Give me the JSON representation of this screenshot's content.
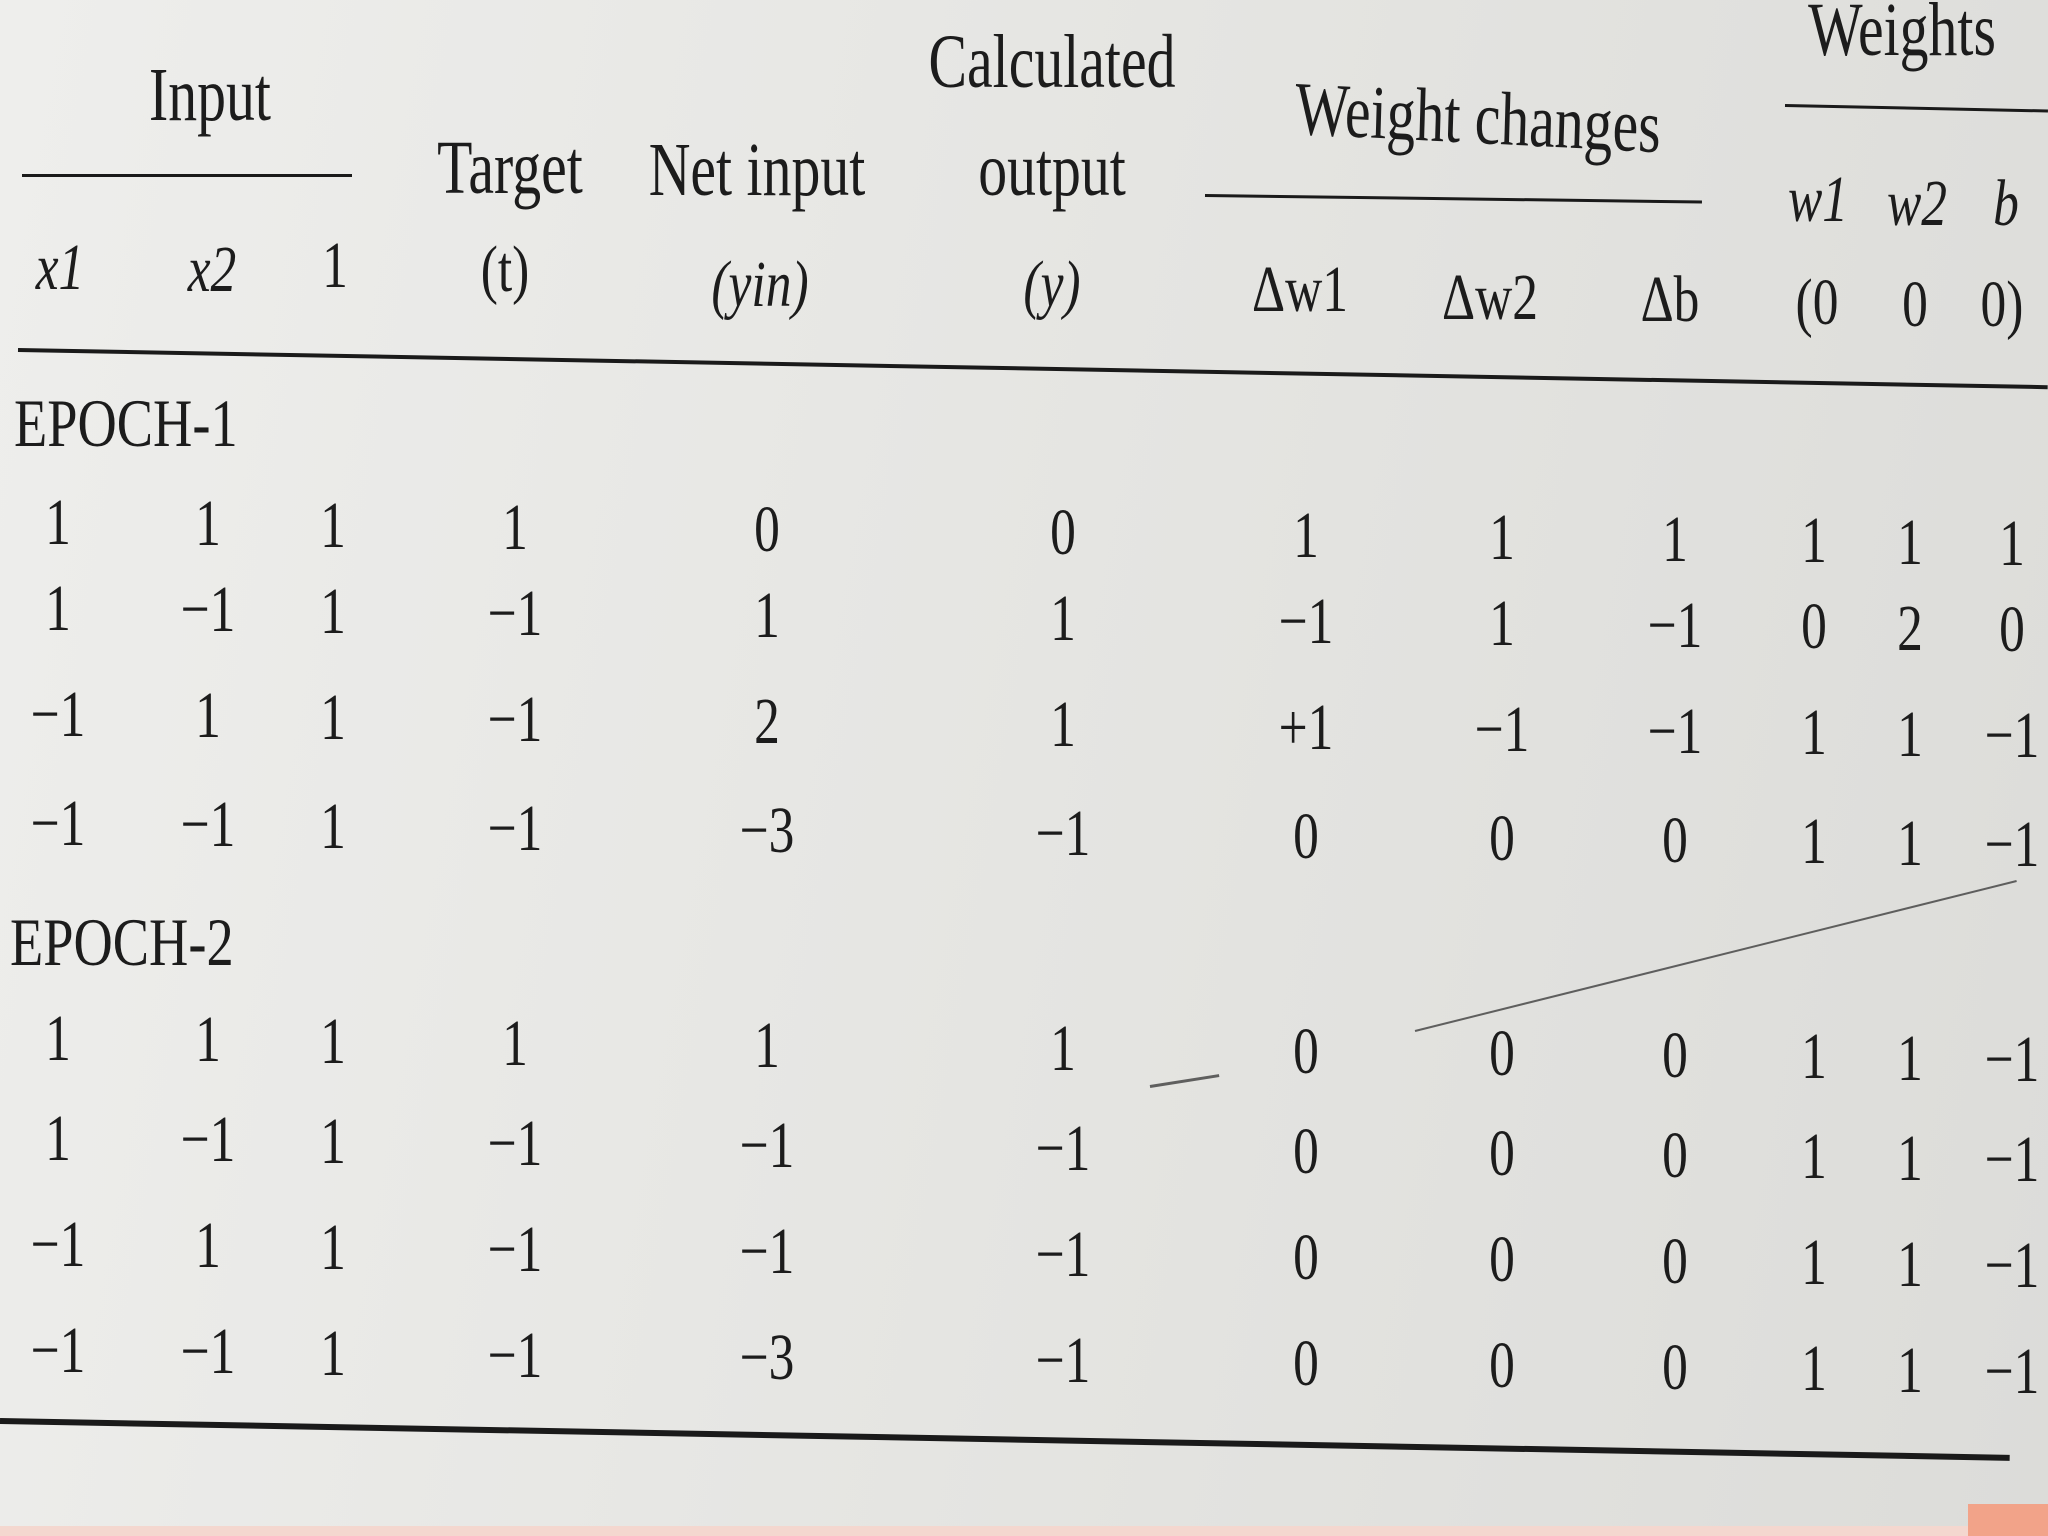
{
  "headers": {
    "input": "Input",
    "target": "Target",
    "net_input": "Net input",
    "calculated": "Calculated",
    "output": "output",
    "weight_changes": "Weight changes",
    "weights": "Weights"
  },
  "subheaders": {
    "x1": "x1",
    "x2": "x2",
    "one": "1",
    "t": "(t)",
    "yin": "(yin)",
    "y": "(y)",
    "dw1": "Δw1",
    "dw2": "Δw2",
    "db": "Δb",
    "w1": "w1",
    "w2": "w2",
    "b": "b",
    "init_w1": "(0",
    "init_w2": "0",
    "init_b": "0)"
  },
  "epochs": [
    {
      "label": "EPOCH-1",
      "rows": [
        [
          "1",
          "1",
          "1",
          "1",
          "0",
          "0",
          "1",
          "1",
          "1",
          "1",
          "1",
          "1"
        ],
        [
          "1",
          "−1",
          "1",
          "−1",
          "1",
          "1",
          "−1",
          "1",
          "−1",
          "0",
          "2",
          "0"
        ],
        [
          "−1",
          "1",
          "1",
          "−1",
          "2",
          "1",
          "+1",
          "−1",
          "−1",
          "1",
          "1",
          "−1"
        ],
        [
          "−1",
          "−1",
          "1",
          "−1",
          "−3",
          "−1",
          "0",
          "0",
          "0",
          "1",
          "1",
          "−1"
        ]
      ]
    },
    {
      "label": "EPOCH-2",
      "rows": [
        [
          "1",
          "1",
          "1",
          "1",
          "1",
          "1",
          "0",
          "0",
          "0",
          "1",
          "1",
          "−1"
        ],
        [
          "1",
          "−1",
          "1",
          "−1",
          "−1",
          "−1",
          "0",
          "0",
          "0",
          "1",
          "1",
          "−1"
        ],
        [
          "−1",
          "1",
          "1",
          "−1",
          "−1",
          "−1",
          "0",
          "0",
          "0",
          "1",
          "1",
          "−1"
        ],
        [
          "−1",
          "−1",
          "1",
          "−1",
          "−3",
          "−1",
          "0",
          "0",
          "0",
          "1",
          "1",
          "−1"
        ]
      ]
    }
  ]
}
